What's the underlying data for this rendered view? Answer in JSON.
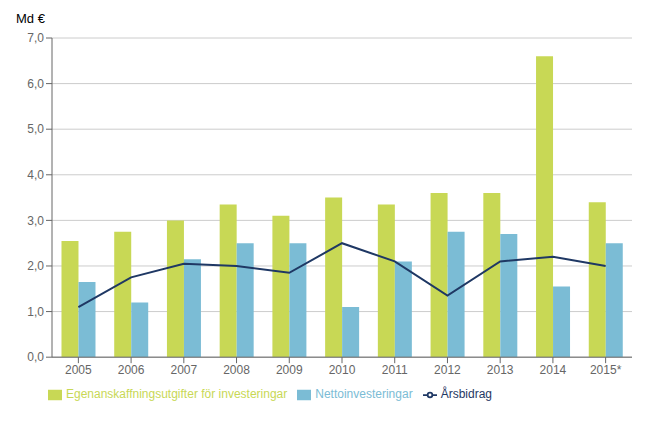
{
  "chart_data": {
    "type": "bar",
    "ylabel": "Md €",
    "categories": [
      "2005",
      "2006",
      "2007",
      "2008",
      "2009",
      "2010",
      "2011",
      "2012",
      "2013",
      "2014",
      "2015*"
    ],
    "series": [
      {
        "name": "Egenanskaffningsutgifter för investeringar",
        "type": "bar",
        "color": "#c8d855",
        "values": [
          2.55,
          2.75,
          3.0,
          3.35,
          3.1,
          3.5,
          3.35,
          3.6,
          3.6,
          6.6,
          3.4
        ]
      },
      {
        "name": "Nettoinvesteringar",
        "type": "bar",
        "color": "#7bbcd5",
        "values": [
          1.65,
          1.2,
          2.15,
          2.5,
          2.5,
          1.1,
          2.1,
          2.75,
          2.7,
          1.55,
          2.5
        ]
      },
      {
        "name": "Årsbidrag",
        "type": "line",
        "color": "#1f3864",
        "values": [
          1.1,
          1.75,
          2.05,
          2.0,
          1.85,
          2.5,
          2.1,
          1.35,
          2.1,
          2.2,
          2.0
        ]
      }
    ],
    "ylim": [
      0,
      7.0
    ],
    "yticks": [
      {
        "value": 0.0,
        "label": "0,0"
      },
      {
        "value": 1.0,
        "label": "1,0"
      },
      {
        "value": 2.0,
        "label": "2,0"
      },
      {
        "value": 3.0,
        "label": "3,0"
      },
      {
        "value": 4.0,
        "label": "4,0"
      },
      {
        "value": 5.0,
        "label": "5,0"
      },
      {
        "value": 6.0,
        "label": "6,0"
      },
      {
        "value": 7.0,
        "label": "7,0"
      }
    ],
    "grid": true,
    "legend": "lower left"
  }
}
